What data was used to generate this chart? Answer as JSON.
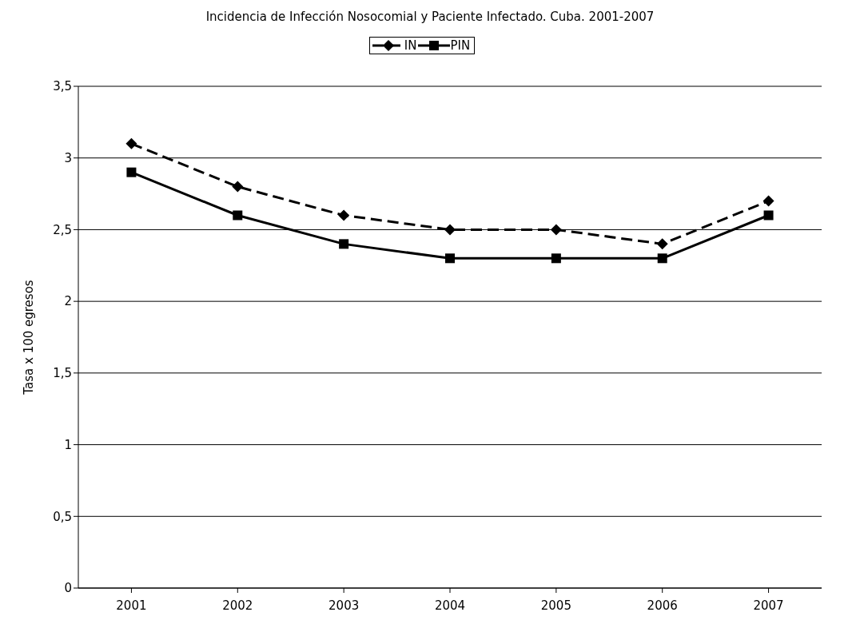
{
  "chart_data": {
    "type": "line",
    "title": "Incidencia de Infección Nosocomial y Paciente Infectado. Cuba. 2001-2007",
    "ylabel": "Tasa x 100 egresos",
    "categories": [
      "2001",
      "2002",
      "2003",
      "2004",
      "2005",
      "2006",
      "2007"
    ],
    "series": [
      {
        "name": "IN",
        "color": "#000000",
        "values": [
          3.1,
          2.8,
          2.6,
          2.5,
          2.5,
          2.4,
          2.7
        ],
        "line_style": "dashed",
        "marker": "diamond"
      },
      {
        "name": "PIN",
        "color": "#000000",
        "values": [
          2.9,
          2.6,
          2.4,
          2.3,
          2.3,
          2.3,
          2.6
        ],
        "line_style": "solid",
        "marker": "square"
      }
    ],
    "ylim": [
      0,
      3.5
    ],
    "yticks": [
      0,
      {
        "value": 0.5,
        "label": "0,5"
      },
      1,
      {
        "value": 1.5,
        "label": "1,5"
      },
      2,
      {
        "value": 2.5,
        "label": "2,5"
      },
      3,
      {
        "value": 3.5,
        "label": "3,5"
      }
    ],
    "grid": "y",
    "legend": "top"
  }
}
